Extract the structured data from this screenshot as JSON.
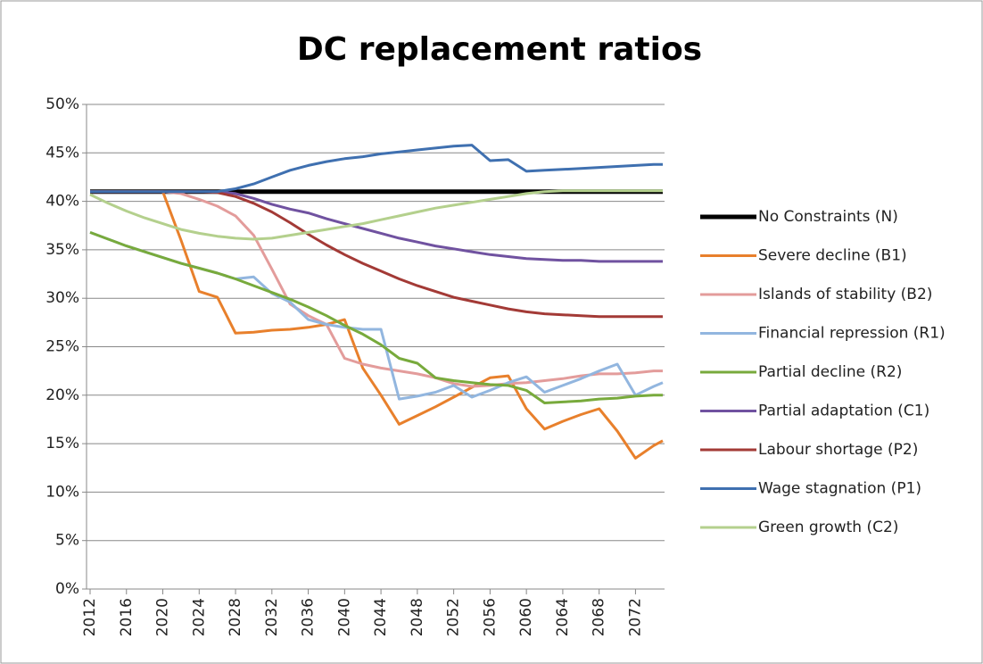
{
  "chart_data": {
    "type": "line",
    "title": "DC replacement ratios",
    "x": [
      2012,
      2014,
      2016,
      2018,
      2020,
      2022,
      2024,
      2026,
      2028,
      2030,
      2032,
      2034,
      2036,
      2038,
      2040,
      2042,
      2044,
      2046,
      2048,
      2050,
      2052,
      2054,
      2056,
      2058,
      2060,
      2062,
      2064,
      2066,
      2068,
      2070,
      2072,
      2074,
      2075
    ],
    "xlim": [
      2012,
      2075
    ],
    "xticks": [
      2012,
      2016,
      2020,
      2024,
      2028,
      2032,
      2036,
      2040,
      2044,
      2048,
      2052,
      2056,
      2060,
      2064,
      2068,
      2072
    ],
    "ylim": [
      0,
      50
    ],
    "yticks": [
      {
        "value": 0,
        "label": "0%"
      },
      {
        "value": 5,
        "label": "5%"
      },
      {
        "value": 10,
        "label": "10%"
      },
      {
        "value": 15,
        "label": "15%"
      },
      {
        "value": 20,
        "label": "20%"
      },
      {
        "value": 25,
        "label": "25%"
      },
      {
        "value": 30,
        "label": "30%"
      },
      {
        "value": 35,
        "label": "35%"
      },
      {
        "value": 40,
        "label": "40%"
      },
      {
        "value": 45,
        "label": "45%"
      },
      {
        "value": 50,
        "label": "50%"
      }
    ],
    "grid": true,
    "legend": "right",
    "series": [
      {
        "name": "No Constraints (N)",
        "color": "#000000",
        "width": 5,
        "values": [
          41,
          41,
          41,
          41,
          41,
          41,
          41,
          41,
          41,
          41,
          41,
          41,
          41,
          41,
          41,
          41,
          41,
          41,
          41,
          41,
          41,
          41,
          41,
          41,
          41,
          41,
          41,
          41,
          41,
          41,
          41,
          41,
          41
        ]
      },
      {
        "name": "Severe decline (B1)",
        "color": "#e8802c",
        "width": 3,
        "values": [
          41,
          41,
          41,
          41,
          41,
          36,
          30.7,
          30.1,
          26.4,
          26.5,
          26.7,
          26.8,
          27,
          27.3,
          27.8,
          22.8,
          20,
          17,
          17.9,
          18.8,
          19.8,
          20.8,
          21.8,
          22,
          18.6,
          16.5,
          17.3,
          18,
          18.6,
          16.3,
          13.5,
          14.8,
          15.3
        ]
      },
      {
        "name": "Islands of stability (B2)",
        "color": "#e39c9b",
        "width": 3,
        "values": [
          41,
          41,
          41,
          41,
          41,
          40.8,
          40.2,
          39.5,
          38.5,
          36.5,
          33,
          29.4,
          28.2,
          27.3,
          23.8,
          23.2,
          22.8,
          22.5,
          22.2,
          21.8,
          21.2,
          20.9,
          21,
          21.2,
          21.3,
          21.5,
          21.7,
          22,
          22.2,
          22.2,
          22.3,
          22.5,
          22.5
        ]
      },
      {
        "name": "Financial repression (R1)",
        "color": "#92b6df",
        "width": 3,
        "values": [
          36.8,
          36.1,
          35.4,
          34.8,
          34.2,
          33.6,
          33.1,
          32.6,
          32,
          32.2,
          30.5,
          29.6,
          27.8,
          27.3,
          27,
          26.8,
          26.8,
          19.6,
          19.9,
          20.3,
          21,
          19.8,
          20.5,
          21.3,
          21.9,
          20.3,
          21,
          21.7,
          22.5,
          23.2,
          20,
          20.9,
          21.3
        ]
      },
      {
        "name": "Partial decline (R2)",
        "color": "#78aa3c",
        "width": 3,
        "values": [
          36.8,
          36.1,
          35.4,
          34.8,
          34.2,
          33.6,
          33.1,
          32.6,
          32,
          31.3,
          30.6,
          29.9,
          29.1,
          28.2,
          27.2,
          26.3,
          25.2,
          23.8,
          23.3,
          21.8,
          21.5,
          21.3,
          21.1,
          21,
          20.5,
          19.2,
          19.3,
          19.4,
          19.6,
          19.7,
          19.9,
          20,
          20
        ]
      },
      {
        "name": "Partial adaptation (C1)",
        "color": "#7052a0",
        "width": 3,
        "values": [
          41,
          41,
          41,
          41,
          41,
          41,
          41,
          41,
          40.8,
          40.3,
          39.7,
          39.2,
          38.8,
          38.2,
          37.7,
          37.2,
          36.7,
          36.2,
          35.8,
          35.4,
          35.1,
          34.8,
          34.5,
          34.3,
          34.1,
          34,
          33.9,
          33.9,
          33.8,
          33.8,
          33.8,
          33.8,
          33.8
        ]
      },
      {
        "name": "Labour shortage (P2)",
        "color": "#a33a36",
        "width": 3,
        "values": [
          41,
          41,
          41,
          41,
          41,
          41,
          41,
          40.9,
          40.5,
          39.8,
          38.9,
          37.8,
          36.6,
          35.5,
          34.5,
          33.6,
          32.8,
          32,
          31.3,
          30.7,
          30.1,
          29.7,
          29.3,
          28.9,
          28.6,
          28.4,
          28.3,
          28.2,
          28.1,
          28.1,
          28.1,
          28.1,
          28.1
        ]
      },
      {
        "name": "Wage stagnation (P1)",
        "color": "#3f70b0",
        "width": 3,
        "values": [
          41,
          41,
          41,
          41,
          41,
          41,
          41,
          41,
          41.3,
          41.8,
          42.5,
          43.2,
          43.7,
          44.1,
          44.4,
          44.6,
          44.9,
          45.1,
          45.3,
          45.5,
          45.7,
          45.8,
          44.2,
          44.3,
          43.1,
          43.2,
          43.3,
          43.4,
          43.5,
          43.6,
          43.7,
          43.8,
          43.8
        ]
      },
      {
        "name": "Green growth (C2)",
        "color": "#b4d08d",
        "width": 3,
        "values": [
          40.7,
          39.8,
          39,
          38.3,
          37.7,
          37.1,
          36.7,
          36.4,
          36.2,
          36.1,
          36.2,
          36.5,
          36.8,
          37.1,
          37.4,
          37.7,
          38.1,
          38.5,
          38.9,
          39.3,
          39.6,
          39.9,
          40.2,
          40.5,
          40.8,
          41,
          41.1,
          41.1,
          41.1,
          41.1,
          41.1,
          41.1,
          41.1
        ]
      }
    ]
  }
}
